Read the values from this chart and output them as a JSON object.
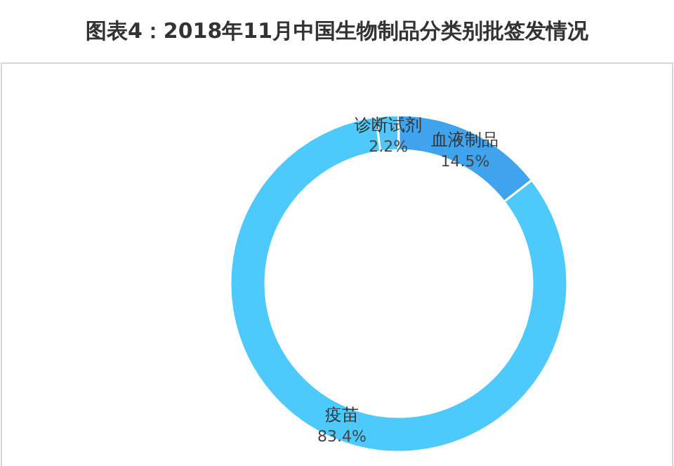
{
  "chart_data": {
    "type": "donut",
    "title": "图表4：2018年11月中国生物制品分类别批签发情况",
    "categories": [
      "诊断试剂",
      "血液制品",
      "疫苗"
    ],
    "values": [
      2.2,
      14.5,
      83.4
    ],
    "colors": [
      "#52c6f7",
      "#3fa3ee",
      "#4dc9fb"
    ],
    "value_labels": [
      "2.2%",
      "14.5%",
      "83.4%"
    ]
  }
}
